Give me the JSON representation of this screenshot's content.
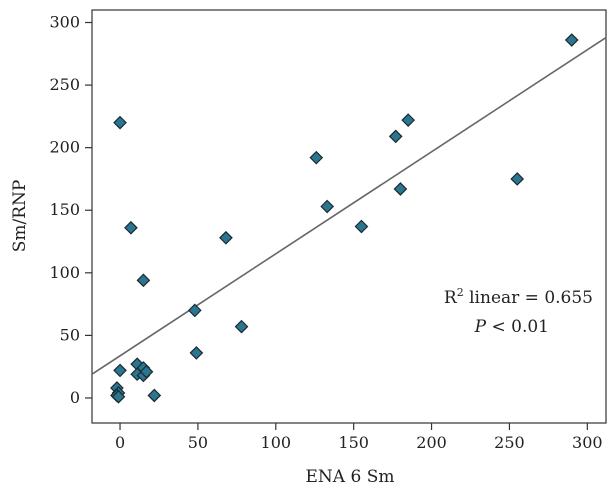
{
  "chart_data": {
    "type": "scatter",
    "title": "",
    "xlabel": "ENA 6 Sm",
    "ylabel": "Sm/RNP",
    "xlim": [
      -18,
      312
    ],
    "ylim": [
      -20,
      310
    ],
    "xticks": [
      0,
      50,
      100,
      150,
      200,
      250,
      300
    ],
    "yticks": [
      0,
      50,
      100,
      150,
      200,
      250,
      300
    ],
    "xtick_labels": [
      "0",
      "50",
      "100",
      "150",
      "200",
      "250",
      "300"
    ],
    "ytick_labels": [
      "0",
      "50",
      "100",
      "150",
      "200",
      "250",
      "300"
    ],
    "grid": false,
    "marker": "diamond",
    "marker_color": "#2a7590",
    "marker_edge_color": "#1a2a30",
    "line_color": "#666666",
    "points": [
      {
        "x": 0,
        "y": 220
      },
      {
        "x": 7,
        "y": 136
      },
      {
        "x": 15,
        "y": 94
      },
      {
        "x": 0,
        "y": 22
      },
      {
        "x": -2,
        "y": 8
      },
      {
        "x": -1,
        "y": 4
      },
      {
        "x": -2,
        "y": 2
      },
      {
        "x": -1,
        "y": 1
      },
      {
        "x": 11,
        "y": 27
      },
      {
        "x": 11,
        "y": 19
      },
      {
        "x": 15,
        "y": 24
      },
      {
        "x": 15,
        "y": 18
      },
      {
        "x": 17,
        "y": 21
      },
      {
        "x": 22,
        "y": 2
      },
      {
        "x": 48,
        "y": 70
      },
      {
        "x": 49,
        "y": 36
      },
      {
        "x": 68,
        "y": 128
      },
      {
        "x": 78,
        "y": 57
      },
      {
        "x": 126,
        "y": 192
      },
      {
        "x": 133,
        "y": 153
      },
      {
        "x": 155,
        "y": 137
      },
      {
        "x": 177,
        "y": 209
      },
      {
        "x": 180,
        "y": 167
      },
      {
        "x": 185,
        "y": 222
      },
      {
        "x": 255,
        "y": 175
      },
      {
        "x": 290,
        "y": 286
      }
    ],
    "regression": {
      "x": [
        -18,
        312
      ],
      "y": [
        19,
        288
      ]
    },
    "annotations": {
      "r2_prefix": "R",
      "r2_sup": "2",
      "r2_suffix": " linear = 0.655",
      "p_symbol": "P",
      "p_rest": " < 0.01"
    }
  }
}
